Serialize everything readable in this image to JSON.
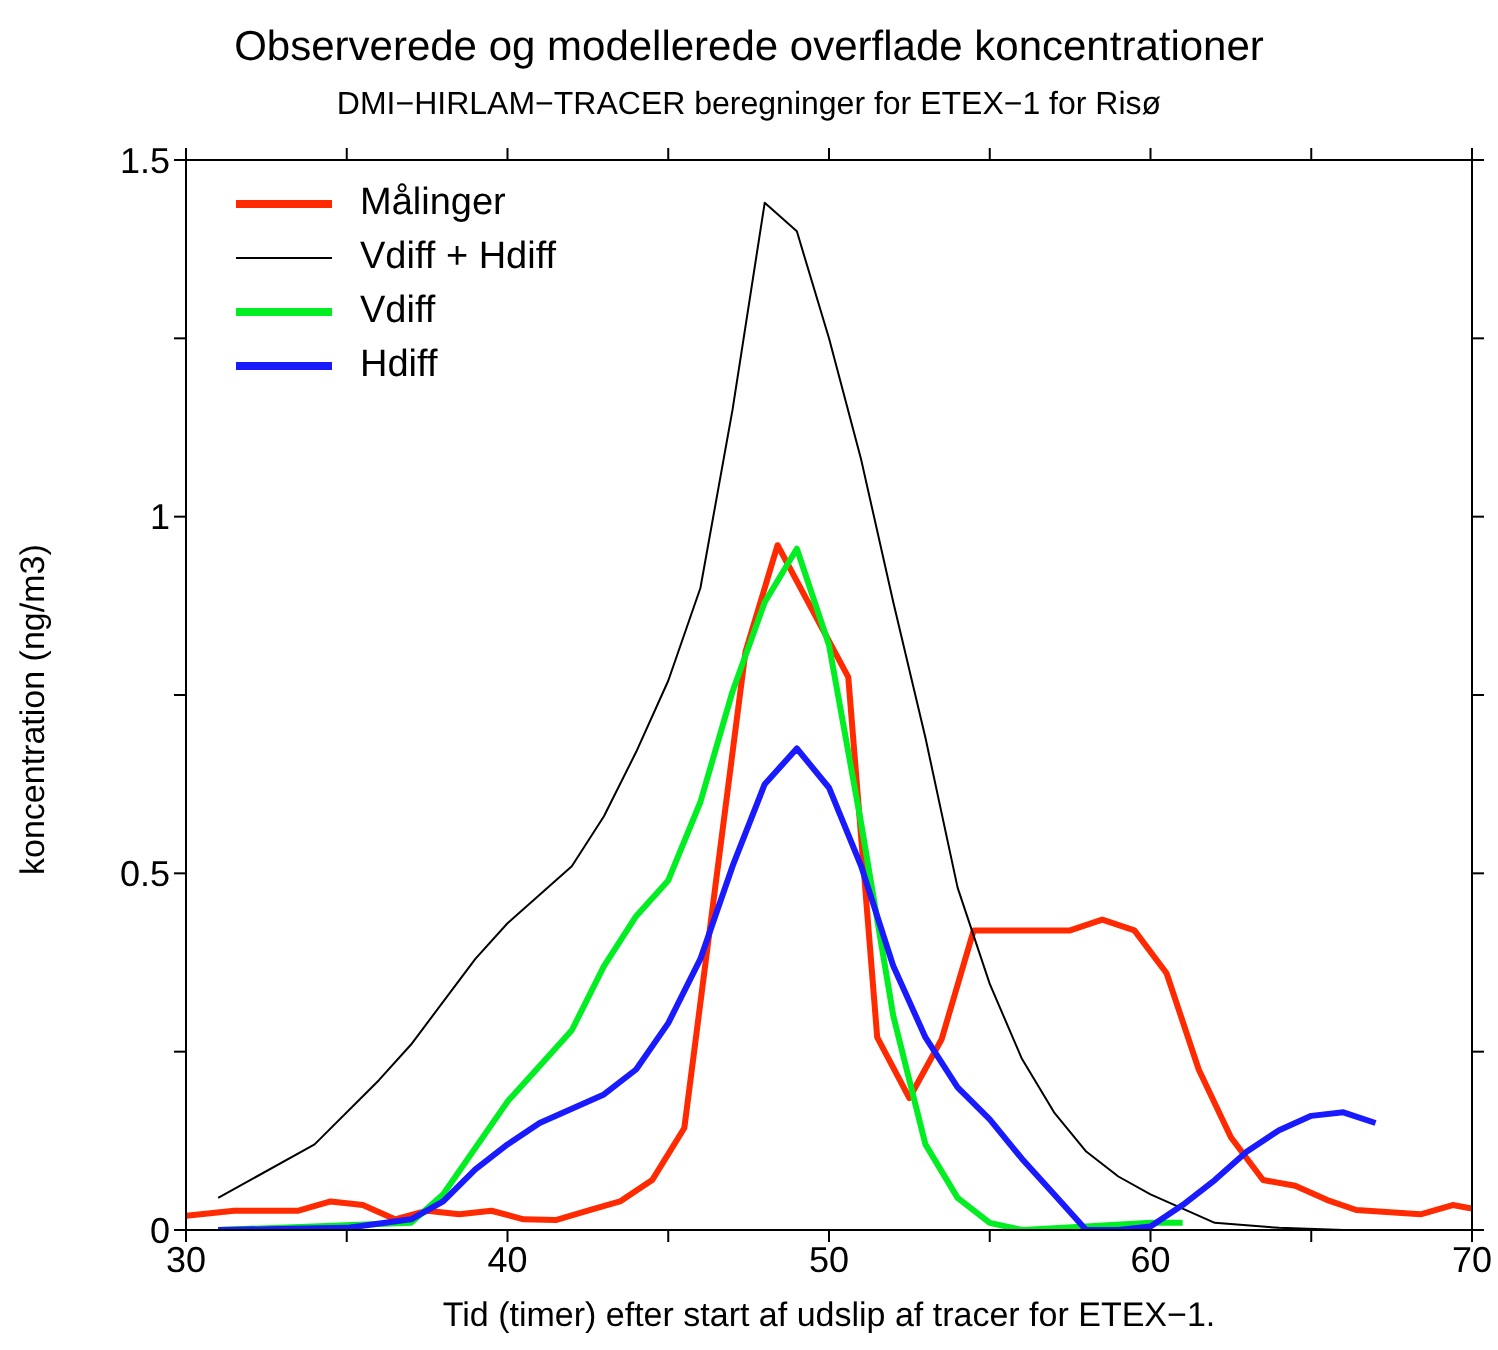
{
  "chart_data": {
    "type": "line",
    "title": "Observerede og modellerede overflade koncentrationer",
    "subtitle": "DMI−HIRLAM−TRACER beregninger for ETEX−1 for Risø",
    "xlabel": "Tid (timer) efter start af udslip af tracer for ETEX−1.",
    "ylabel": "koncentration (ng/m3)",
    "xlim": [
      30,
      70
    ],
    "xticks": [
      30,
      {
        "value": 35,
        "label": null
      },
      40,
      {
        "value": 45,
        "label": null
      },
      50,
      {
        "value": 55,
        "label": null
      },
      60,
      {
        "value": 65,
        "label": null
      },
      70
    ],
    "ylim": [
      0,
      1.5
    ],
    "yticks": [
      0,
      {
        "value": 0.25,
        "label": null
      },
      0.5,
      {
        "value": 0.75,
        "label": null
      },
      1,
      {
        "value": 1.25,
        "label": null
      },
      1.5
    ],
    "grid": false,
    "legend": "top left",
    "marker": "none",
    "series": [
      {
        "name": "Målinger",
        "color": "#ff2a00",
        "x": [
          30,
          31.5,
          33.5,
          34.5,
          35.5,
          36.5,
          37.5,
          38.5,
          39.5,
          40.5,
          41.5,
          42.5,
          43.5,
          44.5,
          45.5,
          47.4,
          48.4,
          50.6,
          51.5,
          52.5,
          53.5,
          54.5,
          57.5,
          58.5,
          59.5,
          60.5,
          61.5,
          62.5,
          63.5,
          64.5,
          65.5,
          66.4,
          68.4,
          69.4,
          70
        ],
        "values": [
          0.02,
          0.027,
          0.027,
          0.04,
          0.035,
          0.015,
          0.027,
          0.022,
          0.027,
          0.015,
          0.014,
          0.027,
          0.04,
          0.07,
          0.143,
          0.81,
          0.96,
          0.775,
          0.27,
          0.185,
          0.267,
          0.42,
          0.42,
          0.435,
          0.42,
          0.36,
          0.225,
          0.13,
          0.07,
          0.062,
          0.042,
          0.028,
          0.022,
          0.035,
          0.03
        ]
      },
      {
        "name": "Vdiff + Hdiff",
        "color": "#000000",
        "x": [
          31,
          34,
          36,
          37,
          39,
          40,
          41,
          42,
          43,
          44,
          45,
          46,
          47,
          48,
          49,
          50,
          51,
          52,
          53,
          54,
          55,
          56,
          57,
          58,
          59,
          60,
          61,
          62,
          64,
          66
        ],
        "values": [
          0.045,
          0.12,
          0.21,
          0.26,
          0.38,
          0.43,
          0.47,
          0.51,
          0.58,
          0.67,
          0.77,
          0.9,
          1.15,
          1.44,
          1.4,
          1.25,
          1.08,
          0.88,
          0.69,
          0.48,
          0.345,
          0.24,
          0.165,
          0.11,
          0.075,
          0.05,
          0.03,
          0.01,
          0.003,
          0
        ]
      },
      {
        "name": "Vdiff",
        "color": "#00ee22",
        "x": [
          31,
          37,
          38,
          40,
          41,
          42,
          43,
          44,
          45,
          46,
          47,
          48,
          49,
          50,
          51,
          52,
          53,
          54,
          55,
          56,
          58,
          60,
          61
        ],
        "values": [
          0,
          0.01,
          0.05,
          0.18,
          0.23,
          0.28,
          0.37,
          0.44,
          0.49,
          0.6,
          0.755,
          0.88,
          0.955,
          0.82,
          0.57,
          0.3,
          0.12,
          0.045,
          0.01,
          0,
          0.005,
          0.01,
          0.01
        ]
      },
      {
        "name": "Hdiff",
        "color": "#1a1aff",
        "x": [
          31,
          35,
          37,
          38,
          39,
          40,
          41,
          42,
          43,
          44,
          45,
          46,
          47,
          48,
          49,
          50,
          51,
          52,
          53,
          54,
          55,
          56,
          57,
          58,
          59,
          60,
          61,
          62,
          63,
          64,
          65,
          66,
          67
        ],
        "values": [
          0,
          0.003,
          0.015,
          0.04,
          0.085,
          0.12,
          0.15,
          0.17,
          0.19,
          0.225,
          0.29,
          0.38,
          0.51,
          0.625,
          0.675,
          0.62,
          0.51,
          0.37,
          0.27,
          0.2,
          0.155,
          0.1,
          0.05,
          0,
          0,
          0.005,
          0.035,
          0.07,
          0.11,
          0.14,
          0.16,
          0.165,
          0.15
        ]
      }
    ]
  }
}
